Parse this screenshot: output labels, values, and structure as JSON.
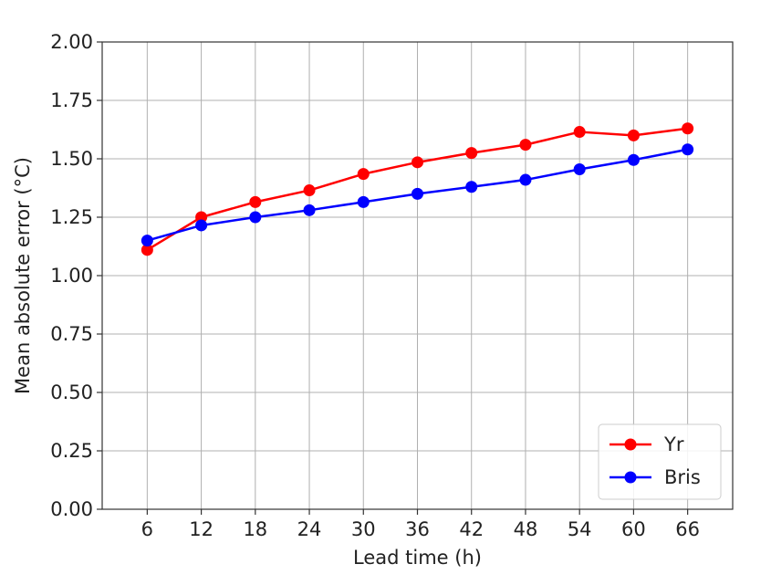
{
  "chart_data": {
    "type": "line",
    "title": "",
    "xlabel": "Lead time (h)",
    "ylabel": "Mean absolute error (°C)",
    "x": [
      6,
      12,
      18,
      24,
      30,
      36,
      42,
      48,
      54,
      60,
      66
    ],
    "x_tick_labels": [
      "6",
      "12",
      "18",
      "24",
      "30",
      "36",
      "42",
      "48",
      "54",
      "60",
      "66"
    ],
    "xlim": [
      1,
      71
    ],
    "ylim": [
      0.0,
      2.0
    ],
    "y_ticks": [
      0.0,
      0.25,
      0.5,
      0.75,
      1.0,
      1.25,
      1.5,
      1.75,
      2.0
    ],
    "y_tick_labels": [
      "0.00",
      "0.25",
      "0.50",
      "0.75",
      "1.00",
      "1.25",
      "1.50",
      "1.75",
      "2.00"
    ],
    "grid": true,
    "legend_position": "bottom-right",
    "series": [
      {
        "name": "Yr",
        "color": "#ff0000",
        "marker": "circle",
        "values": [
          1.11,
          1.25,
          1.315,
          1.365,
          1.435,
          1.485,
          1.525,
          1.56,
          1.615,
          1.6,
          1.63
        ]
      },
      {
        "name": "Bris",
        "color": "#0000ff",
        "marker": "circle",
        "values": [
          1.15,
          1.215,
          1.25,
          1.28,
          1.315,
          1.35,
          1.38,
          1.41,
          1.455,
          1.495,
          1.54
        ]
      }
    ]
  }
}
